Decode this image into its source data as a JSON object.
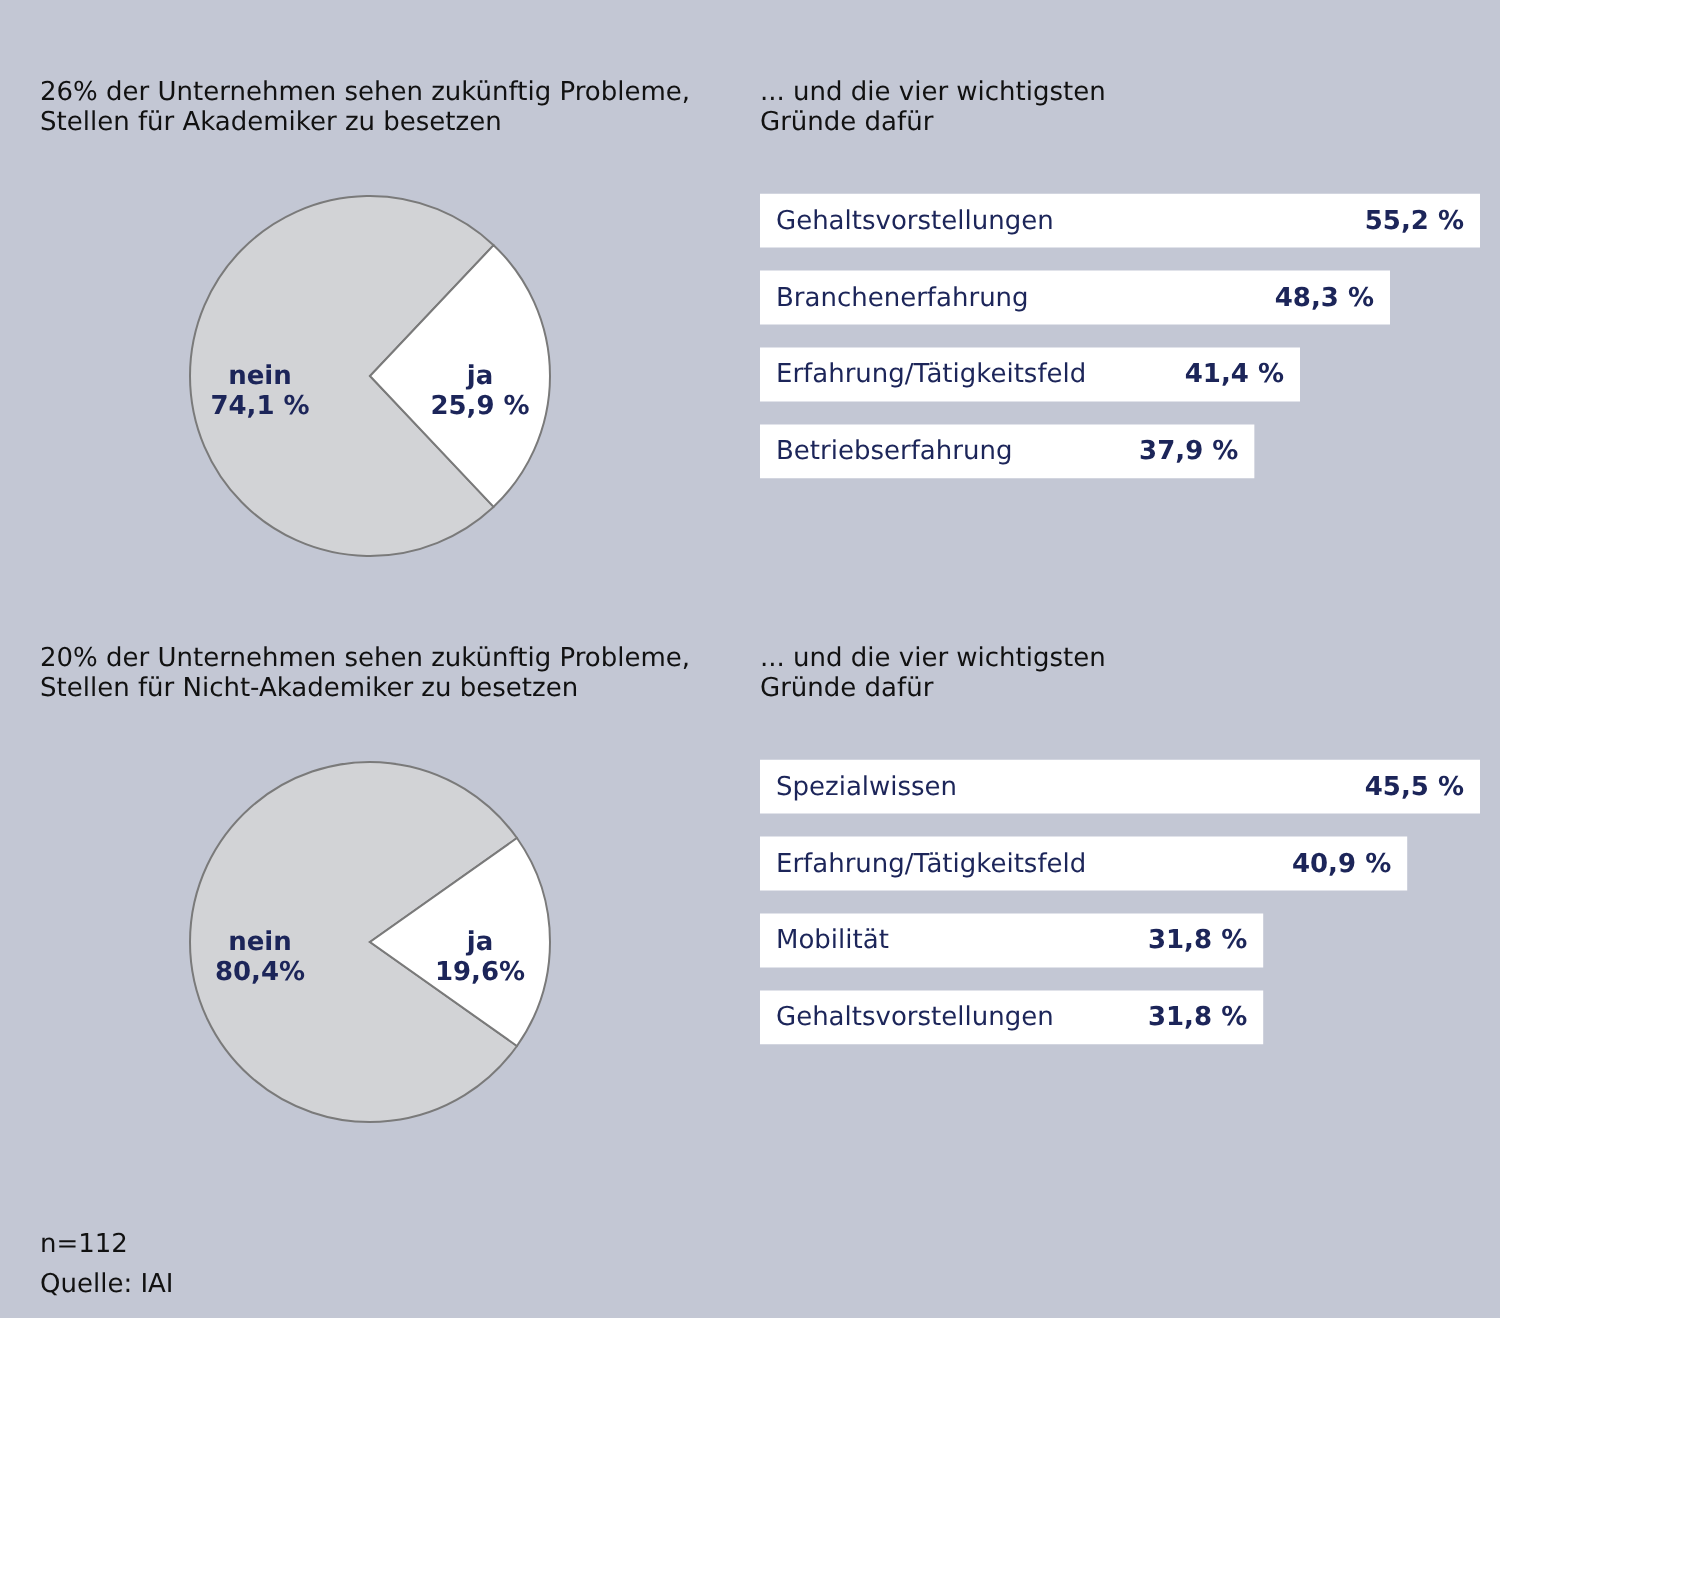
{
  "chart_data": [
    {
      "type": "pie",
      "title": "26% der Unternehmen sehen zukünftig Probleme,\nStellen für Akademiker zu besetzen",
      "categories": [
        "nein",
        "ja"
      ],
      "values": [
        74.1,
        25.9
      ],
      "value_labels": [
        "74,1 %",
        "25,9 %"
      ],
      "colors": [
        "#d2d3d6",
        "#ffffff"
      ]
    },
    {
      "type": "bar",
      "orientation": "horizontal",
      "title": "... und die vier wichtigsten\nGründe dafür",
      "categories": [
        "Gehaltsvorstellungen",
        "Branchenerfahrung",
        "Erfahrung/Tätigkeitsfeld",
        "Betriebserfahrung"
      ],
      "values": [
        55.2,
        48.3,
        41.4,
        37.9
      ],
      "value_labels": [
        "55,2 %",
        "48,3 %",
        "41,4 %",
        "37,9 %"
      ],
      "color": "#ffffff"
    },
    {
      "type": "pie",
      "title": "20% der Unternehmen sehen zukünftig Probleme,\nStellen für Nicht-Akademiker zu besetzen",
      "categories": [
        "nein",
        "ja"
      ],
      "values": [
        80.4,
        19.6
      ],
      "value_labels": [
        "80,4%",
        "19,6%"
      ],
      "colors": [
        "#d2d3d6",
        "#ffffff"
      ],
      "annotations": [
        "n=112",
        "Quelle: IAI"
      ]
    },
    {
      "type": "bar",
      "orientation": "horizontal",
      "title": "... und die vier wichtigsten\nGründe dafür",
      "categories": [
        "Spezialwissen",
        "Erfahrung/Tätigkeitsfeld",
        "Mobilität",
        "Gehaltsvorstellungen"
      ],
      "values": [
        45.5,
        40.9,
        31.8,
        31.8
      ],
      "value_labels": [
        "45,5 %",
        "40,9 %",
        "31,8 %",
        "31,8 %"
      ],
      "color": "#ffffff"
    }
  ]
}
